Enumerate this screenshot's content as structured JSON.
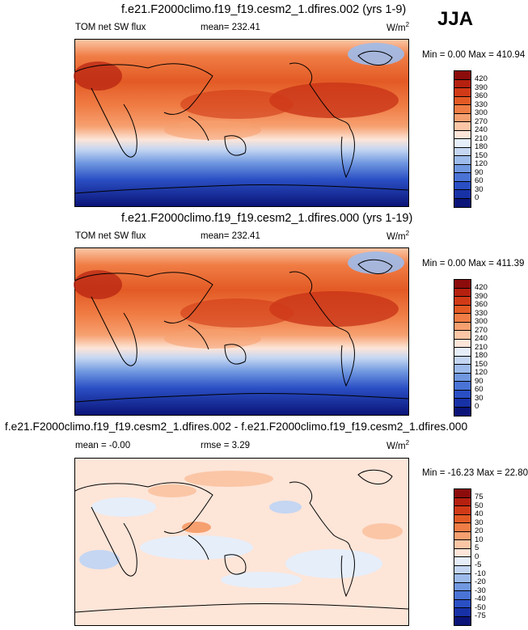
{
  "season": "JJA",
  "units": "W/m",
  "units_sup": "2",
  "panels": [
    {
      "title": "f.e21.F2000climo.f19_f19.cesm2_1.dfires.002 (yrs 1-9)",
      "left_label": "TOM net SW flux",
      "center_label": "mean= 232.41",
      "minmax": "Min =   0.00 Max = 410.94",
      "colorbar": {
        "labels": [
          "420",
          "390",
          "360",
          "330",
          "300",
          "270",
          "240",
          "210",
          "180",
          "150",
          "120",
          "90",
          "60",
          "30",
          "0"
        ],
        "colors": [
          "#8c0b0b",
          "#b5200f",
          "#d13a17",
          "#e35a25",
          "#f07d45",
          "#f6a070",
          "#fbc6a6",
          "#fde5d8",
          "#e6eefa",
          "#c4d6f2",
          "#9dbbeb",
          "#7098e0",
          "#4a73d6",
          "#2a4fc4",
          "#1731a6",
          "#0b1478"
        ]
      }
    },
    {
      "title": "f.e21.F2000climo.f19_f19.cesm2_1.dfires.000 (yrs 1-19)",
      "left_label": "TOM net SW flux",
      "center_label": "mean= 232.41",
      "minmax": "Min =   0.00 Max = 411.39",
      "colorbar": {
        "labels": [
          "420",
          "390",
          "360",
          "330",
          "300",
          "270",
          "240",
          "210",
          "180",
          "150",
          "120",
          "90",
          "60",
          "30",
          "0"
        ],
        "colors": [
          "#8c0b0b",
          "#b5200f",
          "#d13a17",
          "#e35a25",
          "#f07d45",
          "#f6a070",
          "#fbc6a6",
          "#fde5d8",
          "#e6eefa",
          "#c4d6f2",
          "#9dbbeb",
          "#7098e0",
          "#4a73d6",
          "#2a4fc4",
          "#1731a6",
          "#0b1478"
        ]
      }
    },
    {
      "title": "f.e21.F2000climo.f19_f19.cesm2_1.dfires.002 - f.e21.F2000climo.f19_f19.cesm2_1.dfires.000",
      "left_label": "mean =  -0.00",
      "center_label": "rmse =   3.29",
      "minmax": "Min = -16.23 Max =  22.80",
      "colorbar": {
        "labels": [
          "75",
          "50",
          "40",
          "30",
          "20",
          "10",
          "5",
          "0",
          "-5",
          "-10",
          "-20",
          "-30",
          "-40",
          "-50",
          "-75"
        ],
        "colors": [
          "#8c0b0b",
          "#b5200f",
          "#d13a17",
          "#e35a25",
          "#f07d45",
          "#f6a070",
          "#fbc6a6",
          "#fde5d8",
          "#e6eefa",
          "#c4d6f2",
          "#9dbbeb",
          "#7098e0",
          "#4a73d6",
          "#2a4fc4",
          "#1731a6",
          "#0b1478"
        ]
      }
    }
  ]
}
